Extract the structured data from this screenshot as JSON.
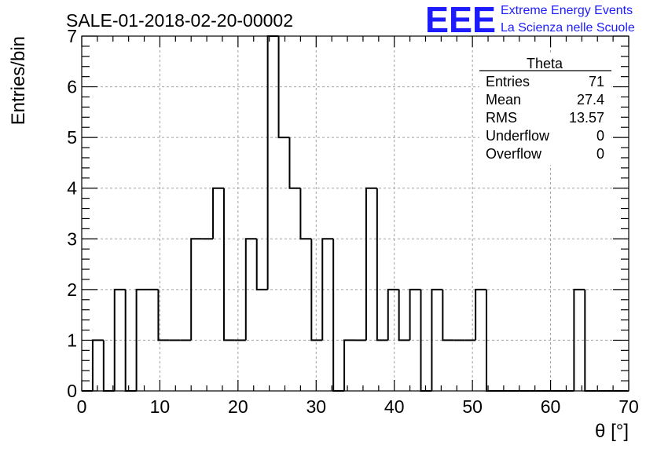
{
  "chart_data": {
    "type": "bar",
    "title": "SALE-01-2018-02-20-00002",
    "xlabel": "θ [°]",
    "ylabel": "Entries/bin",
    "xlim": [
      0,
      70
    ],
    "ylim": [
      0,
      7
    ],
    "x_ticks": [
      0,
      10,
      20,
      30,
      40,
      50,
      60,
      70
    ],
    "y_ticks": [
      0,
      1,
      2,
      3,
      4,
      5,
      6,
      7
    ],
    "grid": true,
    "bin_edges": [
      0,
      1.4,
      2.8,
      4.2,
      5.6,
      7,
      8.4,
      9.8,
      11.2,
      12.6,
      14,
      15.4,
      16.8,
      18.2,
      19.6,
      21,
      22.4,
      23.8,
      25.2,
      26.6,
      28,
      29.4,
      30.8,
      32.2,
      33.6,
      35,
      36.4,
      37.8,
      39.2,
      40.6,
      42,
      43.4,
      44.8,
      46.2,
      47.6,
      49,
      50.4,
      51.8,
      53.2,
      54.6,
      56,
      57.4,
      58.8,
      60.2,
      61.6,
      63,
      64.4,
      65.8,
      67.2,
      68.6,
      70
    ],
    "values": [
      0,
      1,
      0,
      2,
      0,
      2,
      2,
      1,
      1,
      1,
      3,
      3,
      4,
      1,
      1,
      3,
      2,
      7,
      5,
      4,
      3,
      1,
      3,
      0,
      1,
      1,
      4,
      1,
      2,
      1,
      2,
      0,
      2,
      1,
      1,
      1,
      2,
      0,
      0,
      0,
      0,
      0,
      0,
      0,
      0,
      2,
      0,
      0,
      0,
      0
    ],
    "stats": {
      "name": "Theta",
      "rows": [
        {
          "label": "Entries",
          "value": "71"
        },
        {
          "label": "Mean",
          "value": "27.4"
        },
        {
          "label": "RMS",
          "value": "13.57"
        },
        {
          "label": "Underflow",
          "value": "0"
        },
        {
          "label": "Overflow",
          "value": "0"
        }
      ]
    }
  },
  "logo": {
    "mark": "EEE",
    "line1": "Extreme Energy Events",
    "line2": "La Scienza nelle Scuole",
    "color": "#1c1cff"
  }
}
